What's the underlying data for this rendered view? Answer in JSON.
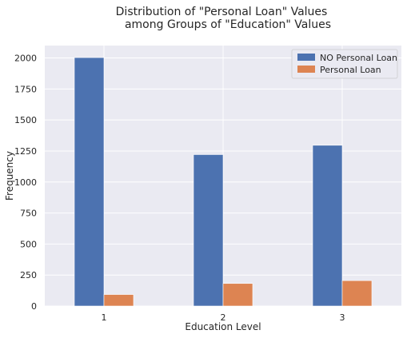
{
  "chart_data": {
    "type": "bar",
    "title_lines": [
      "Distribution of \"Personal Loan\" Values",
      "among Groups of \"Education\" Values"
    ],
    "xlabel": "Education Level",
    "ylabel": "Frequency",
    "categories": [
      "1",
      "2",
      "3"
    ],
    "series": [
      {
        "name": "NO Personal Loan",
        "values": [
          2003,
          1221,
          1296
        ],
        "color": "#4c72b0"
      },
      {
        "name": "Personal Loan",
        "values": [
          93,
          182,
          205
        ],
        "color": "#dd8452"
      }
    ],
    "ylim": [
      0,
      2100
    ],
    "yticks": [
      0,
      250,
      500,
      750,
      1000,
      1250,
      1500,
      1750,
      2000
    ],
    "grid": true,
    "legend_position": "top-right",
    "background": "#eaeaf2"
  }
}
